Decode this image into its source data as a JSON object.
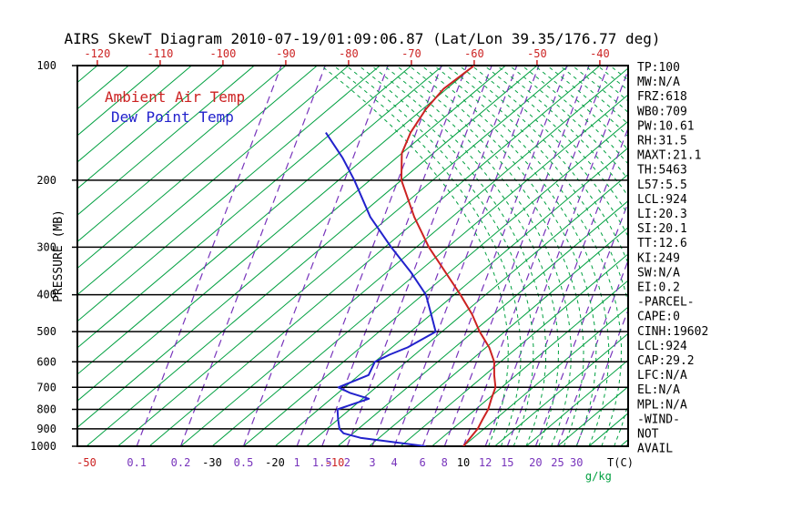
{
  "title": "AIRS SkewT Diagram 2010-07-19/01:09:06.87 (Lat/Lon 39.35/176.77 deg)",
  "legend": {
    "air_temp_label": "Ambient Air Temp",
    "dew_point_label": "Dew Point Temp"
  },
  "colors": {
    "red": "#cc2222",
    "blue": "#2222cc",
    "green": "#00a040",
    "purple": "#7733bb",
    "black": "#000000"
  },
  "axes": {
    "pressure_axis_label": "PRESSURE (MB)",
    "pressure_ticks": [
      100,
      200,
      300,
      400,
      500,
      600,
      700,
      800,
      900,
      1000
    ],
    "bottom_labels": [
      {
        "text": "-50",
        "color": "#cc2222",
        "t": -50
      },
      {
        "text": "0.1",
        "color": "#7733bb",
        "t": -42
      },
      {
        "text": "0.2",
        "color": "#7733bb",
        "t": -35
      },
      {
        "text": "-30",
        "color": "#000000",
        "t": -30
      },
      {
        "text": "0.5",
        "color": "#7733bb",
        "t": -25
      },
      {
        "text": "-20",
        "color": "#000000",
        "t": -20
      },
      {
        "text": "1",
        "color": "#7733bb",
        "t": -16.5
      },
      {
        "text": "1.5",
        "color": "#7733bb",
        "t": -12.5
      },
      {
        "text": "-10",
        "color": "#cc2222",
        "t": -10.5
      },
      {
        "text": "2",
        "color": "#7733bb",
        "t": -8.5
      },
      {
        "text": "3",
        "color": "#7733bb",
        "t": -4.5
      },
      {
        "text": "4",
        "color": "#7733bb",
        "t": -1
      },
      {
        "text": "6",
        "color": "#7733bb",
        "t": 3.5
      },
      {
        "text": "8",
        "color": "#7733bb",
        "t": 7
      },
      {
        "text": "10",
        "color": "#000000",
        "t": 10
      },
      {
        "text": "12",
        "color": "#7733bb",
        "t": 13.5
      },
      {
        "text": "15",
        "color": "#7733bb",
        "t": 17
      },
      {
        "text": "20",
        "color": "#7733bb",
        "t": 21.5
      },
      {
        "text": "25",
        "color": "#7733bb",
        "t": 25
      },
      {
        "text": "30",
        "color": "#7733bb",
        "t": 28
      },
      {
        "text": "T(C)",
        "color": "#000000",
        "t": 35
      },
      {
        "text": "g/kg",
        "color": "#00a040",
        "t": 31.5,
        "row": 2
      }
    ]
  },
  "stats": [
    "TP:100",
    "MW:N/A",
    "FRZ:618",
    "WB0:709",
    "PW:10.61",
    "RH:31.5",
    "MAXT:21.1",
    "TH:5463",
    "L57:5.5",
    "LCL:924",
    "LI:20.3",
    "SI:20.1",
    "TT:12.6",
    "KI:249",
    "SW:N/A",
    "EI:0.2",
    "-PARCEL-",
    "CAPE:0",
    "CINH:19602",
    "LCL:924",
    "CAP:29.2",
    "LFC:N/A",
    "EL:N/A",
    "MPL:N/A",
    "-WIND-",
    "NOT",
    "AVAIL"
  ],
  "chart_data": {
    "type": "line",
    "diagram": "skew-t-log-p",
    "title": "AIRS SkewT Diagram 2010-07-19/01:09:06.87 (Lat/Lon 39.35/176.77 deg)",
    "pressure_axis": {
      "label": "PRESSURE (MB)",
      "scale": "log",
      "range": [
        100,
        1000
      ],
      "ticks": [
        100,
        200,
        300,
        400,
        500,
        600,
        700,
        800,
        900,
        1000
      ]
    },
    "temp_axis": {
      "label": "T(C)",
      "top_ticks_at_100mb": [
        -120,
        -110,
        -100,
        -90,
        -80,
        -70,
        -60,
        -50,
        -40
      ],
      "isotherm_range_c": [
        -120,
        40
      ],
      "isotherm_step_c": 5
    },
    "mixing_ratio": {
      "unit": "g/kg",
      "lines": [
        {
          "w": 0.1,
          "td1000": -42
        },
        {
          "w": 0.2,
          "td1000": -35
        },
        {
          "w": 0.5,
          "td1000": -25
        },
        {
          "w": 1,
          "td1000": -16.5
        },
        {
          "w": 1.5,
          "td1000": -12.5
        },
        {
          "w": 2,
          "td1000": -8.5
        },
        {
          "w": 3,
          "td1000": -4.5
        },
        {
          "w": 4,
          "td1000": -1
        },
        {
          "w": 6,
          "td1000": 3.5
        },
        {
          "w": 8,
          "td1000": 7
        },
        {
          "w": 10,
          "td1000": 10
        },
        {
          "w": 12,
          "td1000": 13.5
        },
        {
          "w": 15,
          "td1000": 17
        },
        {
          "w": 20,
          "td1000": 21.5
        },
        {
          "w": 25,
          "td1000": 25
        },
        {
          "w": 30,
          "td1000": 28
        }
      ]
    },
    "series": [
      {
        "name": "Ambient Air Temp",
        "color": "#cc2222",
        "points_p_t": [
          [
            1000,
            10
          ],
          [
            950,
            9.5
          ],
          [
            900,
            9
          ],
          [
            850,
            8
          ],
          [
            800,
            7
          ],
          [
            750,
            5.5
          ],
          [
            700,
            4
          ],
          [
            650,
            1.5
          ],
          [
            600,
            -1
          ],
          [
            550,
            -4.5
          ],
          [
            500,
            -9
          ],
          [
            450,
            -13.5
          ],
          [
            400,
            -19
          ],
          [
            350,
            -25.5
          ],
          [
            300,
            -33
          ],
          [
            250,
            -41
          ],
          [
            200,
            -50
          ],
          [
            170,
            -55
          ],
          [
            150,
            -57.5
          ],
          [
            130,
            -59.5
          ],
          [
            115,
            -60.5
          ],
          [
            100,
            -60
          ]
        ]
      },
      {
        "name": "Dew Point Temp",
        "color": "#2222cc",
        "points_p_t": [
          [
            1000,
            4
          ],
          [
            975,
            -2
          ],
          [
            950,
            -8
          ],
          [
            925,
            -11.5
          ],
          [
            900,
            -13
          ],
          [
            850,
            -15
          ],
          [
            800,
            -17
          ],
          [
            775,
            -15.5
          ],
          [
            750,
            -14
          ],
          [
            725,
            -18
          ],
          [
            700,
            -21
          ],
          [
            650,
            -18.5
          ],
          [
            600,
            -20
          ],
          [
            575,
            -19
          ],
          [
            550,
            -17.5
          ],
          [
            500,
            -16
          ],
          [
            450,
            -20
          ],
          [
            400,
            -24.5
          ],
          [
            350,
            -31
          ],
          [
            300,
            -39
          ],
          [
            250,
            -48
          ],
          [
            200,
            -57.5
          ],
          [
            175,
            -63.5
          ],
          [
            150,
            -71
          ]
        ]
      }
    ]
  }
}
